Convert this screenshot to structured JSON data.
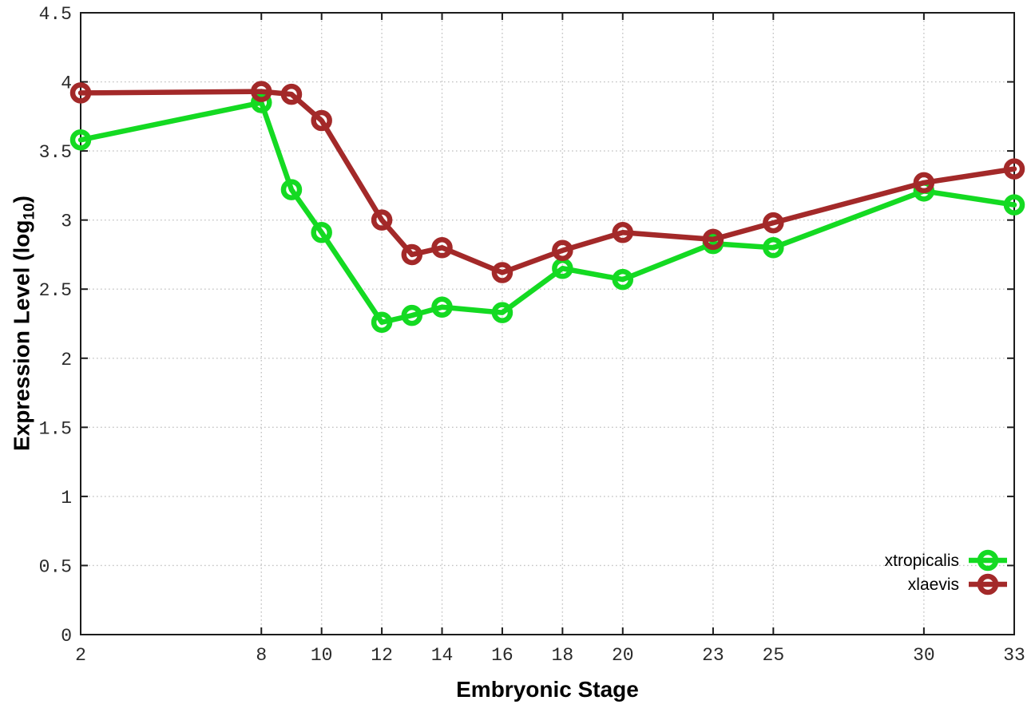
{
  "chart_data": {
    "type": "line",
    "title": "",
    "xlabel": "Embryonic Stage",
    "ylabel": "Expression Level (log10)",
    "ylabel_parts": {
      "prefix": "Expression Level (log",
      "sub": "10",
      "suffix": ")"
    },
    "x": [
      2,
      8,
      9,
      10,
      12,
      13,
      14,
      16,
      18,
      20,
      23,
      25,
      30,
      33
    ],
    "series": [
      {
        "name": "xtropicalis",
        "color": "#14da22",
        "values": [
          3.58,
          3.85,
          3.22,
          2.91,
          2.26,
          2.31,
          2.37,
          2.33,
          2.65,
          2.57,
          2.83,
          2.8,
          3.21,
          3.11
        ]
      },
      {
        "name": "xlaevis",
        "color": "#a32929",
        "values": [
          3.92,
          3.93,
          3.91,
          3.72,
          3.0,
          2.75,
          2.8,
          2.62,
          2.78,
          2.91,
          2.86,
          2.98,
          3.27,
          3.37
        ]
      }
    ],
    "xticks": [
      2,
      8,
      10,
      12,
      14,
      16,
      18,
      20,
      23,
      25,
      30,
      33
    ],
    "ytick_labels": [
      "0",
      "0.5",
      "1",
      "1.5",
      "2",
      "2.5",
      "3",
      "3.5",
      "4",
      "4.5"
    ],
    "xlim": [
      2,
      33
    ],
    "ylim": [
      0,
      4.5
    ],
    "grid": true,
    "legend_position": "inside-bottom-right",
    "legend_entries": [
      "xtropicalis",
      "xlaevis"
    ],
    "colors": {
      "axis": "#1c1c1c",
      "grid": "#c4c4c4",
      "tick_label": "#2a2a2a",
      "legend_text": "#000000",
      "background": "#ffffff"
    }
  }
}
